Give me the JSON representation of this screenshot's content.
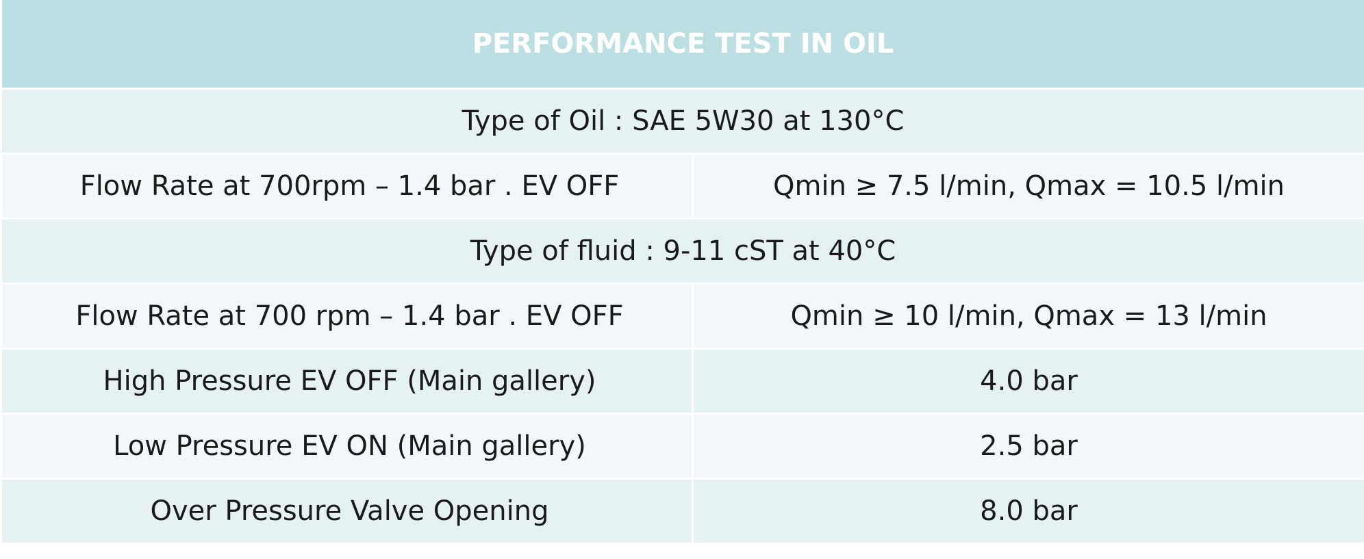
{
  "table": {
    "title": "PERFORMANCE TEST IN OIL",
    "oil_section": {
      "label": "Type of Oil : SAE 5W30 at 130°C",
      "flow_rate": {
        "label": "Flow Rate at 700rpm – 1.4 bar . EV OFF",
        "value": "Qmin ≥ 7.5 l/min,  Qmax = 10.5 l/min"
      }
    },
    "fluid_section": {
      "label": "Type of fluid : 9-11 cST at 40°C",
      "flow_rate": {
        "label": "Flow Rate at 700 rpm – 1.4 bar . EV OFF",
        "value": "Qmin  ≥ 10 l/min,  Qmax = 13 l/min"
      }
    },
    "rows": [
      {
        "label": "High Pressure EV OFF (Main gallery)",
        "value": "4.0 bar"
      },
      {
        "label": "Low Pressure EV ON (Main gallery)",
        "value": "2.5 bar"
      },
      {
        "label": "Over Pressure Valve Opening",
        "value": "8.0 bar"
      }
    ]
  },
  "colors": {
    "header_bg": "#bcdfe3",
    "header_text": "#ffffff",
    "band_odd": "#e5f1f3",
    "band_even": "#f2f8f9",
    "text": "#1a1a1a"
  }
}
